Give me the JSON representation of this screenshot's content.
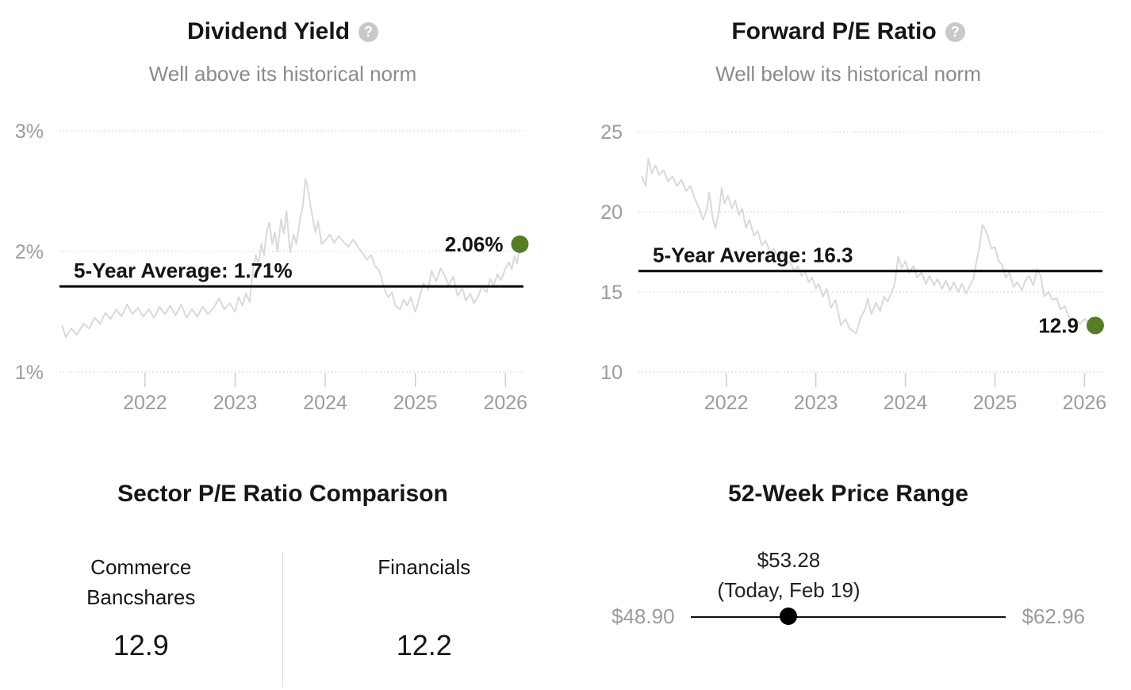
{
  "help_glyph": "?",
  "colors": {
    "accent_green": "#567d26",
    "series_line": "#d9d9d9",
    "grid_line": "#d6d6d6",
    "tick_line": "#cfcfcf",
    "axis_text": "#9c9c9c",
    "average_line": "#000000",
    "marker": "#000000"
  },
  "panels": {
    "dividend_yield": {
      "title": "Dividend Yield",
      "subtitle": "Well above its historical norm"
    },
    "forward_pe": {
      "title": "Forward P/E Ratio",
      "subtitle": "Well below its historical norm"
    },
    "sector_comparison": {
      "title": "Sector P/E Ratio Comparison",
      "columns": [
        {
          "name": "Commerce Bancshares",
          "value": "12.9"
        },
        {
          "name": "Financials",
          "value": "12.2"
        }
      ]
    },
    "price_range": {
      "title": "52-Week Price Range",
      "today_price": "$53.28",
      "today_label": "(Today, Feb 19)",
      "low_label": "$48.90",
      "high_label": "$62.96",
      "low_value": 48.9,
      "high_value": 62.96,
      "today_value": 53.28
    }
  },
  "chart_data": [
    {
      "type": "line",
      "title": "Dividend Yield",
      "subtitle": "Well above its historical norm",
      "unit": "%",
      "xlim": [
        2021.05,
        2026.2
      ],
      "ylim": [
        1,
        3
      ],
      "x_ticks": [
        2022,
        2023,
        2024,
        2025,
        2026
      ],
      "y_ticks": [
        {
          "value": 3,
          "label": "3%"
        },
        {
          "value": 2,
          "label": "2%"
        },
        {
          "value": 1,
          "label": "1%"
        }
      ],
      "average": {
        "value": 1.71,
        "label": "5-Year Average: 1.71%"
      },
      "current": {
        "value": 2.06,
        "label": "2.06%"
      },
      "grid": "dotted",
      "series": [
        [
          2021.08,
          1.38
        ],
        [
          2021.12,
          1.29
        ],
        [
          2021.18,
          1.36
        ],
        [
          2021.24,
          1.31
        ],
        [
          2021.32,
          1.4
        ],
        [
          2021.38,
          1.36
        ],
        [
          2021.44,
          1.45
        ],
        [
          2021.5,
          1.4
        ],
        [
          2021.56,
          1.49
        ],
        [
          2021.62,
          1.44
        ],
        [
          2021.68,
          1.52
        ],
        [
          2021.74,
          1.46
        ],
        [
          2021.8,
          1.56
        ],
        [
          2021.86,
          1.48
        ],
        [
          2021.92,
          1.53
        ],
        [
          2021.98,
          1.46
        ],
        [
          2022.04,
          1.52
        ],
        [
          2022.1,
          1.45
        ],
        [
          2022.16,
          1.54
        ],
        [
          2022.22,
          1.48
        ],
        [
          2022.28,
          1.55
        ],
        [
          2022.34,
          1.47
        ],
        [
          2022.4,
          1.56
        ],
        [
          2022.46,
          1.45
        ],
        [
          2022.52,
          1.52
        ],
        [
          2022.58,
          1.46
        ],
        [
          2022.64,
          1.54
        ],
        [
          2022.7,
          1.48
        ],
        [
          2022.76,
          1.53
        ],
        [
          2022.82,
          1.61
        ],
        [
          2022.88,
          1.52
        ],
        [
          2022.94,
          1.57
        ],
        [
          2023.0,
          1.5
        ],
        [
          2023.04,
          1.62
        ],
        [
          2023.08,
          1.55
        ],
        [
          2023.12,
          1.65
        ],
        [
          2023.16,
          1.58
        ],
        [
          2023.2,
          1.86
        ],
        [
          2023.23,
          1.97
        ],
        [
          2023.26,
          1.89
        ],
        [
          2023.29,
          2.06
        ],
        [
          2023.32,
          1.97
        ],
        [
          2023.35,
          2.17
        ],
        [
          2023.38,
          2.24
        ],
        [
          2023.41,
          2.06
        ],
        [
          2023.44,
          2.16
        ],
        [
          2023.47,
          2.0
        ],
        [
          2023.51,
          2.27
        ],
        [
          2023.54,
          2.15
        ],
        [
          2023.57,
          2.33
        ],
        [
          2023.61,
          1.99
        ],
        [
          2023.65,
          2.14
        ],
        [
          2023.68,
          2.06
        ],
        [
          2023.72,
          2.27
        ],
        [
          2023.75,
          2.37
        ],
        [
          2023.78,
          2.6
        ],
        [
          2023.8,
          2.55
        ],
        [
          2023.83,
          2.41
        ],
        [
          2023.86,
          2.28
        ],
        [
          2023.89,
          2.16
        ],
        [
          2023.92,
          2.25
        ],
        [
          2023.96,
          2.06
        ],
        [
          2024.0,
          2.09
        ],
        [
          2024.05,
          2.14
        ],
        [
          2024.1,
          2.07
        ],
        [
          2024.15,
          2.13
        ],
        [
          2024.2,
          2.08
        ],
        [
          2024.26,
          2.04
        ],
        [
          2024.31,
          2.1
        ],
        [
          2024.37,
          2.03
        ],
        [
          2024.42,
          1.98
        ],
        [
          2024.46,
          1.93
        ],
        [
          2024.51,
          1.97
        ],
        [
          2024.55,
          1.88
        ],
        [
          2024.6,
          1.84
        ],
        [
          2024.63,
          1.76
        ],
        [
          2024.66,
          1.68
        ],
        [
          2024.7,
          1.62
        ],
        [
          2024.74,
          1.66
        ],
        [
          2024.78,
          1.55
        ],
        [
          2024.83,
          1.52
        ],
        [
          2024.87,
          1.6
        ],
        [
          2024.91,
          1.55
        ],
        [
          2024.95,
          1.62
        ],
        [
          2025.0,
          1.5
        ],
        [
          2025.05,
          1.63
        ],
        [
          2025.09,
          1.74
        ],
        [
          2025.14,
          1.68
        ],
        [
          2025.18,
          1.84
        ],
        [
          2025.23,
          1.75
        ],
        [
          2025.28,
          1.86
        ],
        [
          2025.33,
          1.79
        ],
        [
          2025.37,
          1.72
        ],
        [
          2025.42,
          1.79
        ],
        [
          2025.47,
          1.63
        ],
        [
          2025.52,
          1.7
        ],
        [
          2025.56,
          1.59
        ],
        [
          2025.61,
          1.65
        ],
        [
          2025.65,
          1.57
        ],
        [
          2025.7,
          1.63
        ],
        [
          2025.74,
          1.71
        ],
        [
          2025.79,
          1.66
        ],
        [
          2025.83,
          1.77
        ],
        [
          2025.87,
          1.72
        ],
        [
          2025.91,
          1.81
        ],
        [
          2025.95,
          1.76
        ],
        [
          2026.0,
          1.86
        ],
        [
          2026.04,
          1.91
        ],
        [
          2026.07,
          1.85
        ],
        [
          2026.1,
          1.96
        ],
        [
          2026.13,
          1.9
        ],
        [
          2026.16,
          2.06
        ]
      ]
    },
    {
      "type": "line",
      "title": "Forward P/E Ratio",
      "subtitle": "Well below its historical norm",
      "unit": "",
      "xlim": [
        2021.02,
        2026.2
      ],
      "ylim": [
        10,
        25
      ],
      "x_ticks": [
        2022,
        2023,
        2024,
        2025,
        2026
      ],
      "y_ticks": [
        {
          "value": 25,
          "label": "25"
        },
        {
          "value": 20,
          "label": "20"
        },
        {
          "value": 15,
          "label": "15"
        },
        {
          "value": 10,
          "label": "10"
        }
      ],
      "average": {
        "value": 16.3,
        "label": "5-Year Average: 16.3"
      },
      "current": {
        "value": 12.9,
        "label": "12.9"
      },
      "grid": "dotted",
      "series": [
        [
          2021.06,
          22.2
        ],
        [
          2021.1,
          21.6
        ],
        [
          2021.13,
          23.3
        ],
        [
          2021.17,
          22.4
        ],
        [
          2021.21,
          22.9
        ],
        [
          2021.25,
          22.3
        ],
        [
          2021.3,
          22.6
        ],
        [
          2021.35,
          21.9
        ],
        [
          2021.4,
          22.2
        ],
        [
          2021.45,
          21.6
        ],
        [
          2021.5,
          22.0
        ],
        [
          2021.55,
          21.3
        ],
        [
          2021.6,
          21.6
        ],
        [
          2021.65,
          20.8
        ],
        [
          2021.7,
          20.2
        ],
        [
          2021.74,
          19.5
        ],
        [
          2021.78,
          20.1
        ],
        [
          2021.81,
          21.2
        ],
        [
          2021.85,
          19.6
        ],
        [
          2021.88,
          19.0
        ],
        [
          2021.92,
          20.0
        ],
        [
          2021.95,
          21.5
        ],
        [
          2021.98,
          20.5
        ],
        [
          2022.02,
          21.0
        ],
        [
          2022.06,
          20.2
        ],
        [
          2022.1,
          20.7
        ],
        [
          2022.14,
          19.8
        ],
        [
          2022.18,
          20.2
        ],
        [
          2022.22,
          19.0
        ],
        [
          2022.26,
          19.5
        ],
        [
          2022.31,
          18.5
        ],
        [
          2022.35,
          18.8
        ],
        [
          2022.4,
          17.9
        ],
        [
          2022.44,
          18.2
        ],
        [
          2022.49,
          17.5
        ],
        [
          2022.53,
          17.7
        ],
        [
          2022.58,
          17.1
        ],
        [
          2022.62,
          17.5
        ],
        [
          2022.67,
          16.7
        ],
        [
          2022.71,
          16.9
        ],
        [
          2022.76,
          16.3
        ],
        [
          2022.8,
          16.6
        ],
        [
          2022.84,
          16.0
        ],
        [
          2022.88,
          16.3
        ],
        [
          2022.92,
          15.6
        ],
        [
          2022.96,
          15.9
        ],
        [
          2023.0,
          15.2
        ],
        [
          2023.03,
          15.5
        ],
        [
          2023.08,
          14.7
        ],
        [
          2023.12,
          15.2
        ],
        [
          2023.17,
          14.0
        ],
        [
          2023.22,
          14.5
        ],
        [
          2023.28,
          12.9
        ],
        [
          2023.33,
          13.3
        ],
        [
          2023.38,
          12.7
        ],
        [
          2023.45,
          12.4
        ],
        [
          2023.5,
          13.4
        ],
        [
          2023.55,
          13.9
        ],
        [
          2023.58,
          14.6
        ],
        [
          2023.62,
          13.6
        ],
        [
          2023.67,
          14.3
        ],
        [
          2023.72,
          13.8
        ],
        [
          2023.76,
          14.7
        ],
        [
          2023.8,
          14.4
        ],
        [
          2023.85,
          15.0
        ],
        [
          2023.88,
          15.5
        ],
        [
          2023.92,
          17.2
        ],
        [
          2023.96,
          16.5
        ],
        [
          2024.0,
          16.9
        ],
        [
          2024.04,
          16.2
        ],
        [
          2024.09,
          16.6
        ],
        [
          2024.13,
          15.9
        ],
        [
          2024.18,
          16.2
        ],
        [
          2024.23,
          15.5
        ],
        [
          2024.27,
          16.0
        ],
        [
          2024.32,
          15.4
        ],
        [
          2024.36,
          15.8
        ],
        [
          2024.41,
          15.2
        ],
        [
          2024.45,
          15.7
        ],
        [
          2024.5,
          15.1
        ],
        [
          2024.54,
          15.6
        ],
        [
          2024.59,
          15.0
        ],
        [
          2024.63,
          15.5
        ],
        [
          2024.68,
          14.9
        ],
        [
          2024.72,
          15.4
        ],
        [
          2024.76,
          15.8
        ],
        [
          2024.79,
          16.8
        ],
        [
          2024.83,
          17.9
        ],
        [
          2024.86,
          19.2
        ],
        [
          2024.89,
          18.9
        ],
        [
          2024.93,
          18.3
        ],
        [
          2024.96,
          17.7
        ],
        [
          2025.0,
          17.8
        ],
        [
          2025.04,
          16.9
        ],
        [
          2025.08,
          16.7
        ],
        [
          2025.12,
          15.9
        ],
        [
          2025.16,
          16.2
        ],
        [
          2025.21,
          15.3
        ],
        [
          2025.25,
          15.6
        ],
        [
          2025.3,
          15.1
        ],
        [
          2025.34,
          15.7
        ],
        [
          2025.38,
          16.0
        ],
        [
          2025.43,
          15.4
        ],
        [
          2025.47,
          16.4
        ],
        [
          2025.51,
          16.0
        ],
        [
          2025.55,
          14.7
        ],
        [
          2025.6,
          15.0
        ],
        [
          2025.64,
          14.5
        ],
        [
          2025.69,
          14.6
        ],
        [
          2025.73,
          13.9
        ],
        [
          2025.78,
          14.1
        ],
        [
          2025.82,
          13.5
        ],
        [
          2025.86,
          13.3
        ],
        [
          2025.91,
          13.2
        ],
        [
          2025.95,
          13.0
        ],
        [
          2026.0,
          13.3
        ],
        [
          2026.04,
          13.1
        ],
        [
          2026.08,
          13.4
        ],
        [
          2026.12,
          12.9
        ]
      ]
    }
  ]
}
